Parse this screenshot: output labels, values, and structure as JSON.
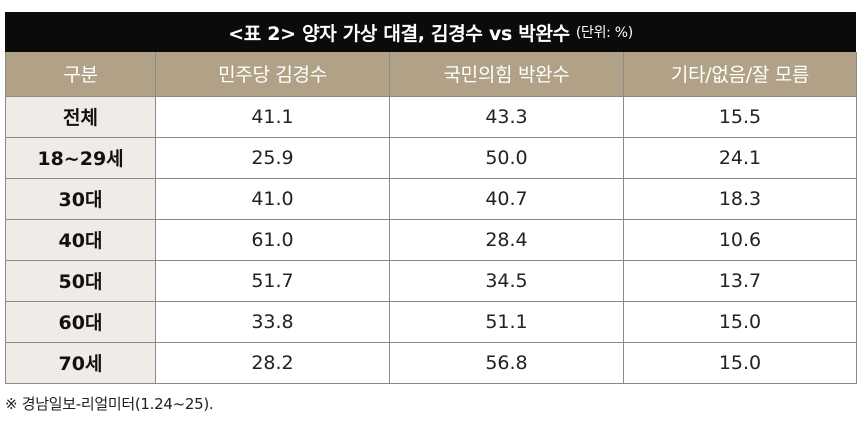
{
  "title": "<표 2> 양자 가상 대결, 김경수 vs 박완수",
  "unit": "(단위: %)",
  "note": "※ 경남일보-리얼미터(1.24~25).",
  "chart_data": {
    "type": "table",
    "title": "<표 2> 양자 가상 대결, 김경수 vs 박완수",
    "unit": "(단위: %)",
    "columns": [
      "구분",
      "민주당 김경수",
      "국민의힘 박완수",
      "기타/없음/잘 모름"
    ],
    "rows": [
      {
        "label": "전체",
        "values": [
          "41.1",
          "43.3",
          "15.5"
        ]
      },
      {
        "label": "18~29세",
        "values": [
          "25.9",
          "50.0",
          "24.1"
        ]
      },
      {
        "label": "30대",
        "values": [
          "41.0",
          "40.7",
          "18.3"
        ]
      },
      {
        "label": "40대",
        "values": [
          "61.0",
          "28.4",
          "10.6"
        ]
      },
      {
        "label": "50대",
        "values": [
          "51.7",
          "34.5",
          "13.7"
        ]
      },
      {
        "label": "60대",
        "values": [
          "33.8",
          "51.1",
          "15.0"
        ]
      },
      {
        "label": "70세",
        "values": [
          "28.2",
          "56.8",
          "15.0"
        ]
      }
    ]
  }
}
